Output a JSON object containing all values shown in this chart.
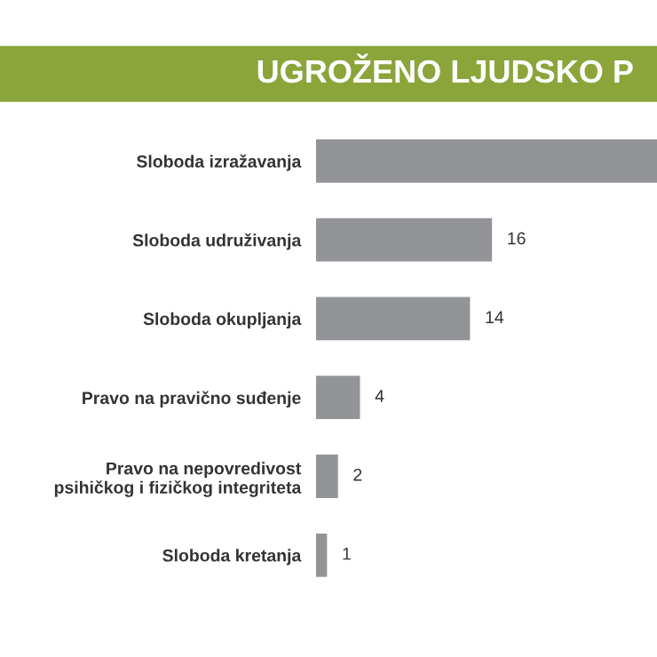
{
  "chart_data": {
    "type": "bar",
    "orientation": "horizontal",
    "title": "UGROŽENO LJUDSKO P",
    "categories": [
      "Sloboda izražavanja",
      "Sloboda udruživanja",
      "Sloboda okupljanja",
      "Pravo na pravično suđenje",
      "Pravo na nepovredivost\npsihičkog i fizičkog integriteta",
      "Sloboda kretanja"
    ],
    "values": [
      31,
      16,
      14,
      4,
      2,
      1
    ],
    "value_labels": [
      null,
      "16",
      "14",
      "4",
      "2",
      "1"
    ],
    "xlim": [
      0,
      31
    ],
    "color": "#929497",
    "tick_labels": "y",
    "grid": false,
    "legend": false
  }
}
